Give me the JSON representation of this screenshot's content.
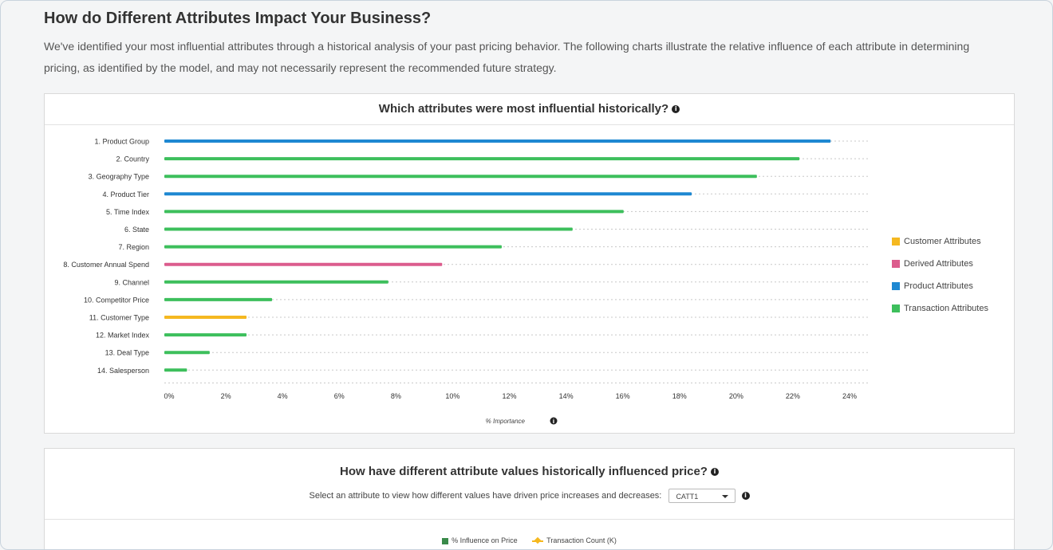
{
  "page": {
    "heading": "How do Different Attributes Impact Your Business?",
    "intro": "We've identified your most influential attributes through a historical analysis of your past pricing behavior. The following charts illustrate the relative influence of each attribute in determining pricing, as identified by the model, and may not necessarily represent the recommended future strategy."
  },
  "colors": {
    "Customer Attributes": "#f5b820",
    "Derived Attributes": "#dc5c8d",
    "Product Attributes": "#1e88d2",
    "Transaction Attributes": "#3dbf5c"
  },
  "chart_data": {
    "type": "bar",
    "orientation": "horizontal",
    "title": "Which attributes were most influential historically?",
    "xlabel": "% Importance",
    "xlim": [
      0,
      24
    ],
    "xticks": [
      "0%",
      "2%",
      "4%",
      "6%",
      "8%",
      "10%",
      "12%",
      "14%",
      "16%",
      "18%",
      "20%",
      "22%",
      "24%"
    ],
    "legend_position": "right",
    "legend": [
      "Customer Attributes",
      "Derived Attributes",
      "Product Attributes",
      "Transaction Attributes"
    ],
    "categories": [
      "1. Product Group",
      "2. Country",
      "3. Geography Type",
      "4. Product Tier",
      "5. Time Index",
      "6. State",
      "7. Region",
      "8. Customer Annual Spend",
      "9. Channel",
      "10. Competitor Price",
      "11. Customer Type",
      "12. Market Index",
      "13. Deal Type",
      "14. Salesperson"
    ],
    "values": [
      23.5,
      22.4,
      20.9,
      18.6,
      16.2,
      14.4,
      11.9,
      9.8,
      7.9,
      3.8,
      2.9,
      2.9,
      1.6,
      0.8
    ],
    "groups": [
      "Product Attributes",
      "Transaction Attributes",
      "Transaction Attributes",
      "Product Attributes",
      "Transaction Attributes",
      "Transaction Attributes",
      "Transaction Attributes",
      "Derived Attributes",
      "Transaction Attributes",
      "Transaction Attributes",
      "Customer Attributes",
      "Transaction Attributes",
      "Transaction Attributes",
      "Transaction Attributes"
    ]
  },
  "section2": {
    "title": "How have different attribute values historically influenced price?",
    "prompt": "Select an attribute to view how different values have driven price increases and decreases:",
    "selected_attribute": "CATT1",
    "legend": [
      {
        "label": "% Influence on Price",
        "color": "#3a8a4a"
      },
      {
        "label": "Transaction Count (K)",
        "color": "#f5b820"
      }
    ]
  }
}
